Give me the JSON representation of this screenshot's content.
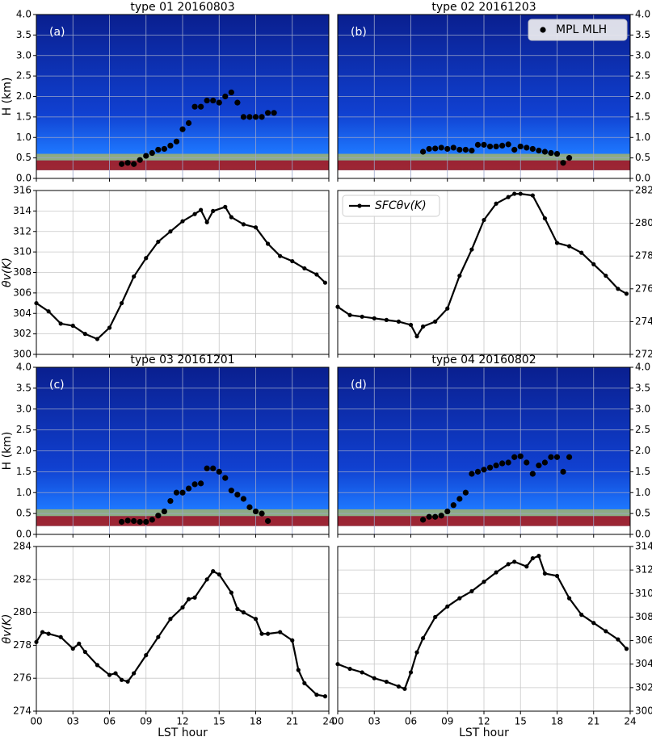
{
  "chart_data": [
    {
      "type": "heatmap",
      "title": "type 01  20160803",
      "label": "(a)",
      "ylabel": "H (km)",
      "xlim": [
        0,
        24
      ],
      "ylim": [
        0,
        4
      ],
      "xticks": [
        0,
        3,
        6,
        9,
        12,
        15,
        18,
        21,
        24
      ],
      "yticks": [
        {
          "value": 0,
          "label": "0.0"
        },
        0.5,
        {
          "value": 1,
          "label": "1.0"
        },
        1.5,
        {
          "value": 2,
          "label": "2.0"
        },
        2.5,
        {
          "value": 3,
          "label": "3.0"
        },
        3.5,
        {
          "value": 4,
          "label": "4.0"
        }
      ],
      "grid": true,
      "series": [
        {
          "color": "#000000",
          "x": [
            7,
            7.5,
            8,
            8.5,
            9,
            9.5,
            10,
            10.5,
            11,
            11.5,
            12,
            12.5,
            13,
            13.5,
            14,
            14.5,
            15,
            15.5,
            16,
            16.5,
            17,
            17.5,
            18,
            18.5,
            19,
            19.5
          ],
          "values": [
            0.35,
            0.38,
            0.35,
            0.45,
            0.55,
            0.62,
            0.7,
            0.72,
            0.8,
            0.9,
            1.2,
            1.35,
            1.75,
            1.75,
            1.9,
            1.9,
            1.85,
            2.0,
            2.1,
            1.85,
            1.5,
            1.5,
            1.5,
            1.5,
            1.6,
            1.6
          ]
        }
      ]
    },
    {
      "type": "heatmap",
      "title": "type 02  20161203",
      "label": "(b)",
      "xlim": [
        0,
        24
      ],
      "ylim": [
        0,
        4
      ],
      "xticks": [
        0,
        3,
        6,
        9,
        12,
        15,
        18,
        21,
        24
      ],
      "yticks": [
        {
          "value": 0,
          "label": "0.0"
        },
        0.5,
        {
          "value": 1,
          "label": "1.0"
        },
        1.5,
        {
          "value": 2,
          "label": "2.0"
        },
        2.5,
        {
          "value": 3,
          "label": "3.0"
        },
        3.5,
        {
          "value": 4,
          "label": "4.0"
        }
      ],
      "grid": true,
      "legend": "upper right",
      "series": [
        {
          "name": "MPL MLH",
          "color": "#000000",
          "x": [
            7,
            7.5,
            8,
            8.5,
            9,
            9.5,
            10,
            10.5,
            11,
            11.5,
            12,
            12.5,
            13,
            13.5,
            14,
            14.5,
            15,
            15.5,
            16,
            16.5,
            17,
            17.5,
            18,
            18.5,
            19
          ],
          "values": [
            0.65,
            0.72,
            0.73,
            0.75,
            0.72,
            0.75,
            0.7,
            0.7,
            0.68,
            0.82,
            0.82,
            0.78,
            0.78,
            0.8,
            0.83,
            0.7,
            0.78,
            0.75,
            0.72,
            0.68,
            0.65,
            0.62,
            0.6,
            0.38,
            0.5
          ]
        }
      ]
    },
    {
      "type": "line",
      "ylabel": "θv(K)",
      "xlim": [
        0,
        24
      ],
      "ylim": [
        300,
        316
      ],
      "xticks": [
        0,
        3,
        6,
        9,
        12,
        15,
        18,
        21,
        24
      ],
      "yticks": [
        300,
        302,
        304,
        306,
        308,
        310,
        312,
        314,
        316
      ],
      "grid": true,
      "series": [
        {
          "color": "#000000",
          "x": [
            0,
            1,
            2,
            3,
            4,
            5,
            6,
            7,
            8,
            9,
            10,
            11,
            12,
            13,
            13.5,
            14,
            14.5,
            15.5,
            16,
            17,
            18,
            19,
            20,
            21,
            22,
            23,
            23.7
          ],
          "values": [
            305.0,
            304.2,
            303.0,
            302.8,
            302.0,
            301.5,
            302.6,
            305.0,
            307.6,
            309.4,
            311.0,
            312.0,
            313.0,
            313.7,
            314.1,
            312.9,
            314.0,
            314.4,
            313.4,
            312.7,
            312.4,
            310.8,
            309.6,
            309.1,
            308.4,
            307.8,
            307.0
          ]
        }
      ]
    },
    {
      "type": "line",
      "xlim": [
        0,
        24
      ],
      "ylim": [
        272,
        282
      ],
      "xticks": [
        0,
        3,
        6,
        9,
        12,
        15,
        18,
        21,
        24
      ],
      "yticks": [
        272,
        274,
        276,
        278,
        280,
        282
      ],
      "grid": true,
      "legend": "upper left",
      "series": [
        {
          "name": "SFCθv(K)",
          "color": "#000000",
          "x": [
            0,
            1,
            2,
            3,
            4,
            5,
            6,
            6.5,
            7,
            8,
            9,
            10,
            11,
            12,
            13,
            14,
            14.5,
            15,
            16,
            17,
            18,
            19,
            20,
            21,
            22,
            23,
            23.7
          ],
          "values": [
            274.9,
            274.4,
            274.3,
            274.2,
            274.1,
            274.0,
            273.8,
            273.1,
            273.7,
            274.0,
            274.8,
            276.8,
            278.4,
            280.2,
            281.2,
            281.6,
            281.8,
            281.8,
            281.7,
            280.3,
            278.8,
            278.6,
            278.2,
            277.5,
            276.8,
            276.0,
            275.7
          ]
        }
      ]
    },
    {
      "type": "heatmap",
      "title": "type 03  20161201",
      "label": "(c)",
      "ylabel": "H (km)",
      "xlim": [
        0,
        24
      ],
      "ylim": [
        0,
        4
      ],
      "xticks": [
        0,
        3,
        6,
        9,
        12,
        15,
        18,
        21,
        24
      ],
      "yticks": [
        {
          "value": 0,
          "label": "0.0"
        },
        0.5,
        {
          "value": 1,
          "label": "1.0"
        },
        1.5,
        {
          "value": 2,
          "label": "2.0"
        },
        2.5,
        {
          "value": 3,
          "label": "3.0"
        },
        3.5,
        {
          "value": 4,
          "label": "4.0"
        }
      ],
      "grid": true,
      "series": [
        {
          "color": "#000000",
          "x": [
            7,
            7.5,
            8,
            8.5,
            9,
            9.5,
            10,
            10.5,
            11,
            11.5,
            12,
            12.5,
            13,
            13.5,
            14,
            14.5,
            15,
            15.5,
            16,
            16.5,
            17,
            17.5,
            18,
            18.5,
            19
          ],
          "values": [
            0.3,
            0.33,
            0.32,
            0.3,
            0.3,
            0.35,
            0.45,
            0.55,
            0.8,
            1.0,
            1.0,
            1.1,
            1.2,
            1.22,
            1.58,
            1.58,
            1.5,
            1.35,
            1.05,
            0.95,
            0.85,
            0.65,
            0.55,
            0.5,
            0.32
          ]
        }
      ]
    },
    {
      "type": "heatmap",
      "title": "type 04  20160802",
      "label": "(d)",
      "xlim": [
        0,
        24
      ],
      "ylim": [
        0,
        4
      ],
      "xticks": [
        0,
        3,
        6,
        9,
        12,
        15,
        18,
        21,
        24
      ],
      "yticks": [
        {
          "value": 0,
          "label": "0.0"
        },
        0.5,
        {
          "value": 1,
          "label": "1.0"
        },
        1.5,
        {
          "value": 2,
          "label": "2.0"
        },
        2.5,
        {
          "value": 3,
          "label": "3.0"
        },
        3.5,
        {
          "value": 4,
          "label": "4.0"
        }
      ],
      "grid": true,
      "series": [
        {
          "color": "#000000",
          "x": [
            7,
            7.5,
            8,
            8.5,
            9,
            9.5,
            10,
            10.5,
            11,
            11.5,
            12,
            12.5,
            13,
            13.5,
            14,
            14.5,
            15,
            15.5,
            16,
            16.5,
            17,
            17.5,
            18,
            18.5,
            19
          ],
          "values": [
            0.35,
            0.42,
            0.42,
            0.45,
            0.55,
            0.7,
            0.85,
            1.0,
            1.45,
            1.5,
            1.55,
            1.6,
            1.65,
            1.7,
            1.72,
            1.85,
            1.87,
            1.72,
            1.45,
            1.65,
            1.72,
            1.85,
            1.85,
            1.5,
            1.85
          ]
        }
      ]
    },
    {
      "type": "line",
      "ylabel": "θv(K)",
      "xlabel": "LST hour",
      "xlim": [
        0,
        24
      ],
      "ylim": [
        274,
        284
      ],
      "xticks": [
        {
          "value": 0,
          "label": "00"
        },
        {
          "value": 3,
          "label": "03"
        },
        {
          "value": 6,
          "label": "06"
        },
        {
          "value": 9,
          "label": "09"
        },
        12,
        15,
        18,
        21,
        24
      ],
      "yticks": [
        274,
        276,
        278,
        280,
        282,
        284
      ],
      "grid": true,
      "series": [
        {
          "color": "#000000",
          "x": [
            0,
            0.5,
            1,
            2,
            3,
            3.5,
            4,
            5,
            6,
            6.5,
            7,
            7.5,
            8,
            9,
            10,
            11,
            12,
            12.5,
            13,
            14,
            14.5,
            15,
            16,
            16.5,
            17,
            18,
            18.5,
            19,
            20,
            21,
            21.5,
            22,
            23,
            23.7
          ],
          "values": [
            278.2,
            278.8,
            278.7,
            278.5,
            277.8,
            278.1,
            277.6,
            276.8,
            276.2,
            276.3,
            275.9,
            275.8,
            276.3,
            277.4,
            278.5,
            279.6,
            280.3,
            280.8,
            280.9,
            282.0,
            282.5,
            282.3,
            281.2,
            280.2,
            280.0,
            279.6,
            278.7,
            278.7,
            278.8,
            278.3,
            276.5,
            275.7,
            275.0,
            274.9
          ]
        }
      ]
    },
    {
      "type": "line",
      "xlabel": "LST hour",
      "xlim": [
        0,
        24
      ],
      "ylim": [
        300,
        314
      ],
      "xticks": [
        {
          "value": 0,
          "label": "00"
        },
        {
          "value": 3,
          "label": "03"
        },
        {
          "value": 6,
          "label": "06"
        },
        {
          "value": 9,
          "label": "09"
        },
        12,
        15,
        18,
        21,
        24
      ],
      "yticks": [
        300,
        302,
        304,
        306,
        308,
        310,
        312,
        314
      ],
      "grid": true,
      "series": [
        {
          "color": "#000000",
          "x": [
            0,
            1,
            2,
            3,
            4,
            5,
            5.5,
            6,
            6.5,
            7,
            8,
            9,
            10,
            11,
            12,
            13,
            14,
            14.5,
            15.5,
            16,
            16.5,
            17,
            18,
            19,
            20,
            21,
            22,
            23,
            23.7
          ],
          "values": [
            304.0,
            303.6,
            303.3,
            302.8,
            302.5,
            302.1,
            301.9,
            303.3,
            305.0,
            306.2,
            308.0,
            308.9,
            309.6,
            310.2,
            311.0,
            311.8,
            312.5,
            312.7,
            312.3,
            313.0,
            313.2,
            311.7,
            311.5,
            309.6,
            308.2,
            307.5,
            306.8,
            306.1,
            305.3
          ]
        }
      ]
    }
  ]
}
